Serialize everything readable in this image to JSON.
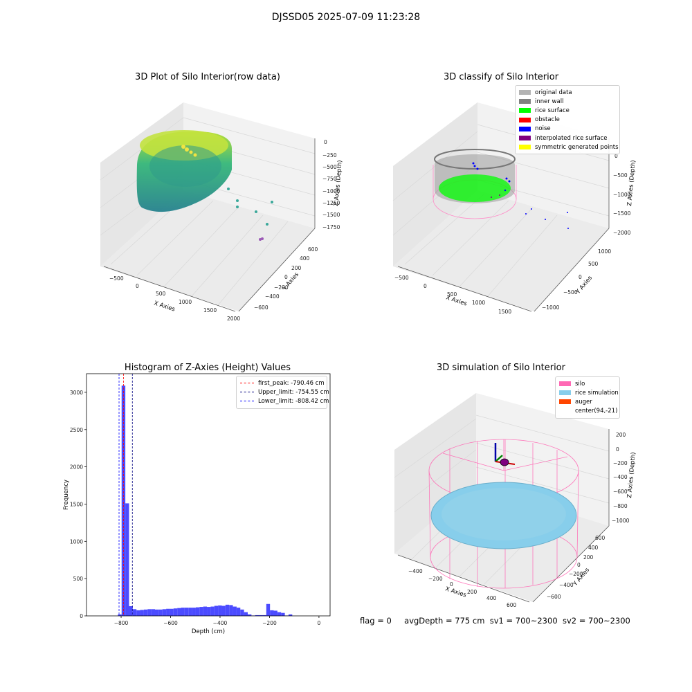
{
  "suptitle": "DJSSD05 2025-07-09 11:23:28",
  "panels": {
    "raw": {
      "title": "3D Plot of Silo Interior(row data)",
      "x_label": "X Axies",
      "y_label": "Y Axies",
      "z_label": "Z Axies (Depth)",
      "x_ticks": [
        "−500",
        "0",
        "500",
        "1000",
        "1500",
        "2000"
      ],
      "y_ticks": [
        "−600",
        "−400",
        "−200",
        "0",
        "200",
        "400",
        "600"
      ],
      "z_ticks": [
        "0",
        "−250",
        "−500",
        "−750",
        "−1000",
        "−1250",
        "−1500",
        "−1750"
      ]
    },
    "classify": {
      "title": "3D classify of Silo Interior",
      "x_label": "X Axies",
      "y_label": "Y Axies",
      "z_label": "Z Axies (Depth)",
      "x_ticks": [
        "−500",
        "0",
        "500",
        "1000",
        "1500"
      ],
      "y_ticks": [
        "−1000",
        "−500",
        "0",
        "500",
        "1000"
      ],
      "z_ticks": [
        "0",
        "−500",
        "−1000",
        "−1500",
        "−2000"
      ],
      "legend": [
        {
          "label": "original data",
          "color": "#b3b3b3"
        },
        {
          "label": "inner wall",
          "color": "#808080"
        },
        {
          "label": "rice surface",
          "color": "#00ff00"
        },
        {
          "label": "obstacle",
          "color": "#ff0000"
        },
        {
          "label": "noise",
          "color": "#0000ff"
        },
        {
          "label": "interpolated rice surface",
          "color": "#800080"
        },
        {
          "label": "symmetric generated points",
          "color": "#ffff00"
        }
      ]
    },
    "hist": {
      "title": "Histogram of Z-Axies (Height) Values",
      "legend": [
        {
          "label": "first_peak: -790.46 cm",
          "color": "#ff0000"
        },
        {
          "label": "Upper_limit: -754.55 cm",
          "color": "#000080"
        },
        {
          "label": "Lower_limit: -808.42 cm",
          "color": "#0000ff"
        }
      ]
    },
    "sim": {
      "title": "3D simulation of Silo Interior",
      "x_label": "X Axies",
      "y_label": "Y Axies",
      "z_label": "Z Axies (Depth)",
      "x_ticks": [
        "−400",
        "−200",
        "0",
        "200",
        "400",
        "600"
      ],
      "y_ticks": [
        "−600",
        "−400",
        "−200",
        "0",
        "200",
        "400",
        "600"
      ],
      "z_ticks": [
        "200",
        "0",
        "−200",
        "−400",
        "−600",
        "−800",
        "−1000"
      ],
      "legend": [
        {
          "label": "silo",
          "color": "#ff69b4"
        },
        {
          "label": "rice simulation",
          "color": "#87ceeb"
        },
        {
          "label": "auger",
          "color": "#ff4500"
        },
        {
          "label": "center(94,-21)",
          "color": ""
        }
      ]
    }
  },
  "status": {
    "flag": "flag = 0",
    "avg": "avgDepth = 775 cm",
    "sv1": "sv1 = 700~2300",
    "sv2": "sv2 = 700~2300"
  },
  "chart_data": [
    {
      "type": "scatter",
      "title": "3D Plot of Silo Interior(row data)",
      "xlabel": "X Axies",
      "ylabel": "Y Axies",
      "zlabel": "Z Axies (Depth)",
      "xlim": [
        -600,
        2000
      ],
      "ylim": [
        -700,
        650
      ],
      "zlim": [
        -1850,
        50
      ],
      "colormap": "viridis",
      "description_points": "cylindrical wall of points coloured by depth"
    },
    {
      "type": "scatter",
      "title": "3D classify of Silo Interior",
      "xlabel": "X Axies",
      "ylabel": "Y Axies",
      "zlabel": "Z Axies (Depth)",
      "xlim": [
        -600,
        1700
      ],
      "ylim": [
        -1100,
        1100
      ],
      "zlim": [
        -2000,
        50
      ],
      "series": [
        {
          "name": "original data"
        },
        {
          "name": "inner wall"
        },
        {
          "name": "rice surface"
        },
        {
          "name": "obstacle"
        },
        {
          "name": "noise"
        },
        {
          "name": "interpolated rice surface"
        },
        {
          "name": "symmetric generated points"
        }
      ]
    },
    {
      "type": "bar",
      "title": "Histogram of Z-Axies (Height) Values",
      "xlabel": "Depth (cm)",
      "ylabel": "Frequency",
      "xlim": [
        -940,
        45
      ],
      "ylim": [
        0,
        3250
      ],
      "x_ticks": [
        -800,
        -600,
        -400,
        -200,
        0
      ],
      "y_ticks": [
        0,
        500,
        1000,
        1500,
        2000,
        2500,
        3000
      ],
      "bin_width": 15,
      "bin_start": -813,
      "values": [
        20,
        3090,
        1510,
        130,
        90,
        75,
        80,
        85,
        90,
        90,
        85,
        85,
        90,
        95,
        95,
        100,
        105,
        110,
        110,
        110,
        110,
        115,
        120,
        125,
        120,
        125,
        135,
        140,
        135,
        150,
        145,
        125,
        110,
        85,
        50,
        20,
        5,
        10,
        10,
        10,
        160,
        75,
        70,
        50,
        40,
        5,
        20
      ],
      "vlines": [
        {
          "name": "first_peak",
          "x": -790.46,
          "color": "#ff0000"
        },
        {
          "name": "Upper_limit",
          "x": -754.55,
          "color": "#000080"
        },
        {
          "name": "Lower_limit",
          "x": -808.42,
          "color": "#0000ff"
        }
      ],
      "bar_color": "#4b4bff"
    },
    {
      "type": "scatter",
      "title": "3D simulation of Silo Interior",
      "xlabel": "X Axies",
      "ylabel": "Y Axies",
      "zlabel": "Z Axies (Depth)",
      "xlim": [
        -500,
        700
      ],
      "ylim": [
        -700,
        650
      ],
      "zlim": [
        -1100,
        300
      ],
      "series": [
        {
          "name": "silo"
        },
        {
          "name": "rice simulation"
        },
        {
          "name": "auger"
        }
      ],
      "center": [
        94,
        -21
      ]
    }
  ]
}
